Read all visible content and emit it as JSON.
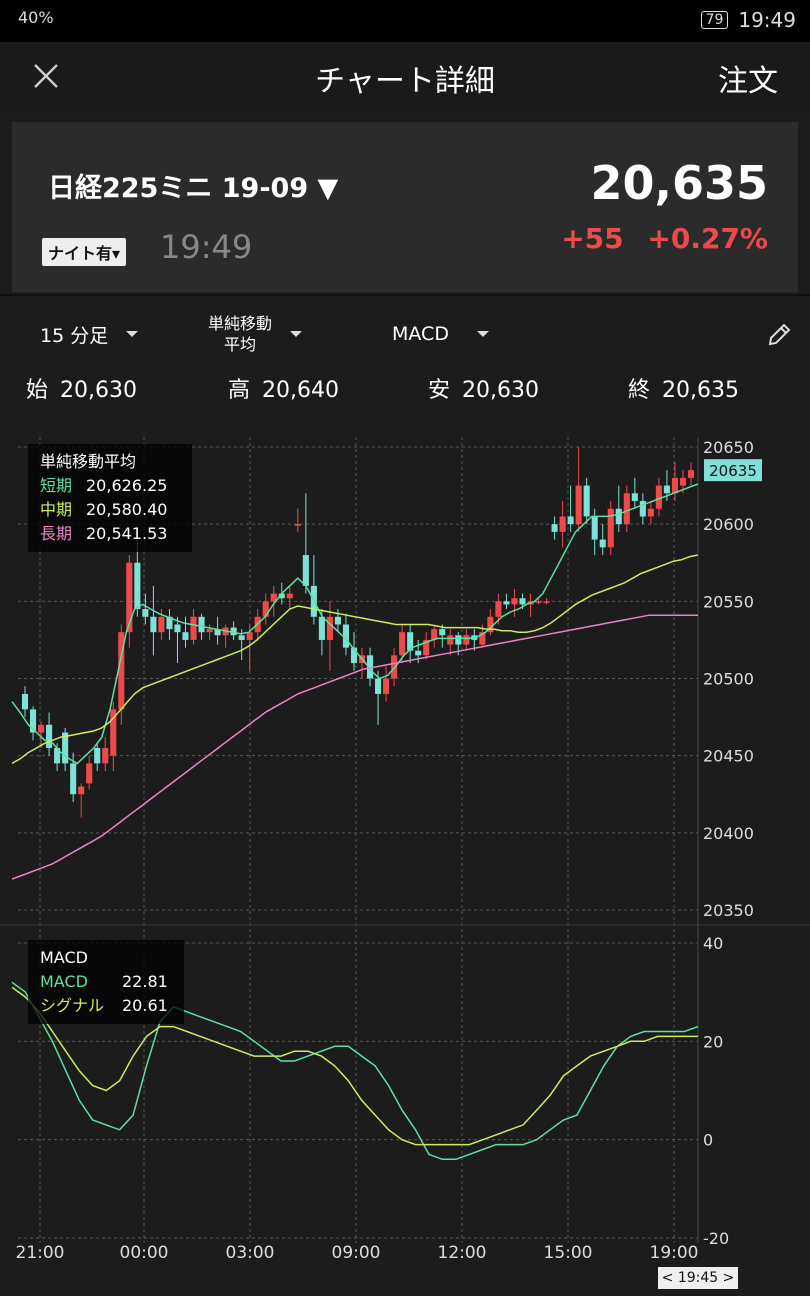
{
  "status_bar": {
    "left_text": "40%",
    "time": "19:49",
    "battery": "79"
  },
  "header": {
    "title": "チャート詳細",
    "order_label": "注文"
  },
  "quote": {
    "symbol": "日経225ミニ 19-09",
    "night_badge": "ナイト有",
    "time": "19:49",
    "price": "20,635",
    "change": "+55",
    "change_pct": "+0.27%"
  },
  "toolbar": {
    "interval": "15 分足",
    "indicator1_line1": "単純移動",
    "indicator1_line2": "平均",
    "indicator2": "MACD"
  },
  "ohlc": {
    "open_label": "始",
    "open": "20,630",
    "high_label": "高",
    "high": "20,640",
    "low_label": "安",
    "low": "20,630",
    "close_label": "終",
    "close": "20,635"
  },
  "ma_legend": {
    "title": "単純移動平均",
    "short_label": "短期",
    "short": "20,626.25",
    "mid_label": "中期",
    "mid": "20,580.40",
    "long_label": "長期",
    "long": "20,541.53"
  },
  "macd_legend": {
    "title": "MACD",
    "macd_label": "MACD",
    "macd": "22.81",
    "signal_label": "シグナル",
    "signal": "20.61"
  },
  "time_badge": "< 19:45 >",
  "colors": {
    "up": "#ef4a4a",
    "down": "#7fe0d8",
    "short": "#5ee0a0",
    "mid": "#c8ee60",
    "long": "#e884c8",
    "grid": "#555"
  },
  "chart_data": [
    {
      "type": "candlestick",
      "title": "",
      "current_price_label": "20635",
      "y_ticks": [
        "20650",
        "20600",
        "20550",
        "20500",
        "20450",
        "20400",
        "20350"
      ],
      "ylim": [
        20350,
        20650
      ],
      "x_ticks": [
        "21:00",
        "00:00",
        "03:00",
        "09:00",
        "12:00",
        "15:00",
        "19:00"
      ],
      "candles": [
        {
          "o": 20490,
          "h": 20495,
          "l": 20475,
          "c": 20480
        },
        {
          "o": 20480,
          "h": 20482,
          "l": 20460,
          "c": 20465
        },
        {
          "o": 20465,
          "h": 20472,
          "l": 20455,
          "c": 20470
        },
        {
          "o": 20470,
          "h": 20478,
          "l": 20450,
          "c": 20455
        },
        {
          "o": 20455,
          "h": 20458,
          "l": 20440,
          "c": 20445
        },
        {
          "o": 20465,
          "h": 20468,
          "l": 20440,
          "c": 20445
        },
        {
          "o": 20445,
          "h": 20452,
          "l": 20420,
          "c": 20425
        },
        {
          "o": 20425,
          "h": 20432,
          "l": 20410,
          "c": 20430
        },
        {
          "o": 20432,
          "h": 20450,
          "l": 20428,
          "c": 20445
        },
        {
          "o": 20455,
          "h": 20458,
          "l": 20440,
          "c": 20445
        },
        {
          "o": 20445,
          "h": 20462,
          "l": 20440,
          "c": 20455
        },
        {
          "o": 20450,
          "h": 20485,
          "l": 20440,
          "c": 20480
        },
        {
          "o": 20480,
          "h": 20535,
          "l": 20470,
          "c": 20530
        },
        {
          "o": 20530,
          "h": 20580,
          "l": 20520,
          "c": 20575
        },
        {
          "o": 20575,
          "h": 20590,
          "l": 20540,
          "c": 20545
        },
        {
          "o": 20545,
          "h": 20555,
          "l": 20535,
          "c": 20540
        },
        {
          "o": 20540,
          "h": 20560,
          "l": 20515,
          "c": 20530
        },
        {
          "o": 20530,
          "h": 20545,
          "l": 20525,
          "c": 20540
        },
        {
          "o": 20540,
          "h": 20545,
          "l": 20525,
          "c": 20532
        },
        {
          "o": 20535,
          "h": 20540,
          "l": 20510,
          "c": 20530
        },
        {
          "o": 20530,
          "h": 20540,
          "l": 20520,
          "c": 20525
        },
        {
          "o": 20525,
          "h": 20545,
          "l": 20522,
          "c": 20540
        },
        {
          "o": 20540,
          "h": 20542,
          "l": 20525,
          "c": 20530
        },
        {
          "o": 20530,
          "h": 20535,
          "l": 20525,
          "c": 20532
        },
        {
          "o": 20532,
          "h": 20540,
          "l": 20522,
          "c": 20528
        },
        {
          "o": 20528,
          "h": 20535,
          "l": 20520,
          "c": 20533
        },
        {
          "o": 20533,
          "h": 20537,
          "l": 20525,
          "c": 20528
        },
        {
          "o": 20528,
          "h": 20532,
          "l": 20512,
          "c": 20525
        },
        {
          "o": 20525,
          "h": 20535,
          "l": 20505,
          "c": 20530
        },
        {
          "o": 20530,
          "h": 20545,
          "l": 20525,
          "c": 20540
        },
        {
          "o": 20540,
          "h": 20555,
          "l": 20535,
          "c": 20550
        },
        {
          "o": 20550,
          "h": 20560,
          "l": 20540,
          "c": 20555
        },
        {
          "o": 20555,
          "h": 20562,
          "l": 20548,
          "c": 20552
        },
        {
          "o": 20552,
          "h": 20560,
          "l": 20545,
          "c": 20555
        },
        {
          "o": 20600,
          "h": 20610,
          "l": 20595,
          "c": 20600
        },
        {
          "o": 20580,
          "h": 20620,
          "l": 20555,
          "c": 20560
        },
        {
          "o": 20560,
          "h": 20580,
          "l": 20535,
          "c": 20540
        },
        {
          "o": 20540,
          "h": 20545,
          "l": 20515,
          "c": 20525
        },
        {
          "o": 20525,
          "h": 20550,
          "l": 20505,
          "c": 20540
        },
        {
          "o": 20540,
          "h": 20545,
          "l": 20530,
          "c": 20535
        },
        {
          "o": 20535,
          "h": 20542,
          "l": 20515,
          "c": 20520
        },
        {
          "o": 20520,
          "h": 20530,
          "l": 20505,
          "c": 20510
        },
        {
          "o": 20510,
          "h": 20520,
          "l": 20500,
          "c": 20515
        },
        {
          "o": 20515,
          "h": 20520,
          "l": 20495,
          "c": 20500
        },
        {
          "o": 20500,
          "h": 20505,
          "l": 20470,
          "c": 20490
        },
        {
          "o": 20490,
          "h": 20508,
          "l": 20485,
          "c": 20500
        },
        {
          "o": 20500,
          "h": 20520,
          "l": 20495,
          "c": 20515
        },
        {
          "o": 20515,
          "h": 20535,
          "l": 20510,
          "c": 20530
        },
        {
          "o": 20530,
          "h": 20535,
          "l": 20510,
          "c": 20518
        },
        {
          "o": 20518,
          "h": 20525,
          "l": 20510,
          "c": 20515
        },
        {
          "o": 20515,
          "h": 20530,
          "l": 20512,
          "c": 20525
        },
        {
          "o": 20525,
          "h": 20535,
          "l": 20520,
          "c": 20532
        },
        {
          "o": 20532,
          "h": 20535,
          "l": 20520,
          "c": 20528
        },
        {
          "o": 20522,
          "h": 20532,
          "l": 20515,
          "c": 20528
        },
        {
          "o": 20528,
          "h": 20530,
          "l": 20515,
          "c": 20522
        },
        {
          "o": 20522,
          "h": 20532,
          "l": 20518,
          "c": 20528
        },
        {
          "o": 20528,
          "h": 20532,
          "l": 20518,
          "c": 20525
        },
        {
          "o": 20522,
          "h": 20535,
          "l": 20520,
          "c": 20530
        },
        {
          "o": 20530,
          "h": 20545,
          "l": 20528,
          "c": 20540
        },
        {
          "o": 20540,
          "h": 20555,
          "l": 20535,
          "c": 20550
        },
        {
          "o": 20550,
          "h": 20555,
          "l": 20545,
          "c": 20548
        },
        {
          "o": 20548,
          "h": 20558,
          "l": 20540,
          "c": 20552
        },
        {
          "o": 20552,
          "h": 20555,
          "l": 20545,
          "c": 20548
        },
        {
          "o": 20548,
          "h": 20555,
          "l": 20540,
          "c": 20550
        },
        {
          "o": 20550,
          "h": 20552,
          "l": 20548,
          "c": 20550
        },
        {
          "o": 20550,
          "h": 20552,
          "l": 20548,
          "c": 20550
        },
        {
          "o": 20600,
          "h": 20605,
          "l": 20590,
          "c": 20595
        },
        {
          "o": 20595,
          "h": 20615,
          "l": 20585,
          "c": 20605
        },
        {
          "o": 20605,
          "h": 20625,
          "l": 20595,
          "c": 20600
        },
        {
          "o": 20600,
          "h": 20650,
          "l": 20595,
          "c": 20625
        },
        {
          "o": 20625,
          "h": 20630,
          "l": 20600,
          "c": 20605
        },
        {
          "o": 20605,
          "h": 20610,
          "l": 20580,
          "c": 20590
        },
        {
          "o": 20590,
          "h": 20600,
          "l": 20580,
          "c": 20585
        },
        {
          "o": 20585,
          "h": 20615,
          "l": 20580,
          "c": 20610
        },
        {
          "o": 20610,
          "h": 20625,
          "l": 20595,
          "c": 20600
        },
        {
          "o": 20600,
          "h": 20625,
          "l": 20595,
          "c": 20620
        },
        {
          "o": 20620,
          "h": 20630,
          "l": 20610,
          "c": 20615
        },
        {
          "o": 20615,
          "h": 20620,
          "l": 20600,
          "c": 20605
        },
        {
          "o": 20605,
          "h": 20615,
          "l": 20600,
          "c": 20610
        },
        {
          "o": 20610,
          "h": 20630,
          "l": 20605,
          "c": 20625
        },
        {
          "o": 20625,
          "h": 20635,
          "l": 20615,
          "c": 20620
        },
        {
          "o": 20620,
          "h": 20640,
          "l": 20615,
          "c": 20630
        },
        {
          "o": 20625,
          "h": 20635,
          "l": 20620,
          "c": 20630
        },
        {
          "o": 20630,
          "h": 20640,
          "l": 20625,
          "c": 20635
        }
      ],
      "series": [
        {
          "name": "短期",
          "values": [
            20485,
            20478,
            20470,
            20465,
            20460,
            20458,
            20452,
            20448,
            20445,
            20450,
            20455,
            20462,
            20480,
            20505,
            20530,
            20545,
            20548,
            20545,
            20542,
            20540,
            20538,
            20536,
            20535,
            20534,
            20533,
            20532,
            20531,
            20530,
            20529,
            20530,
            20535,
            20540,
            20548,
            20555,
            20560,
            20565,
            20560,
            20550,
            20540,
            20535,
            20530,
            20525,
            20518,
            20512,
            20505,
            20500,
            20502,
            20508,
            20515,
            20520,
            20522,
            20524,
            20526,
            20526,
            20526,
            20526,
            20526,
            20527,
            20530,
            20535,
            20540,
            20543,
            20545,
            20548,
            20550,
            20555,
            20565,
            20575,
            20585,
            20595,
            20600,
            20605,
            20605,
            20605,
            20606,
            20608,
            20610,
            20612,
            20614,
            20616,
            20618,
            20620,
            20622,
            20624,
            20626
          ]
        },
        {
          "name": "中期",
          "values": [
            20445,
            20448,
            20452,
            20455,
            20458,
            20460,
            20462,
            20463,
            20464,
            20465,
            20466,
            20468,
            20472,
            20478,
            20484,
            20490,
            20494,
            20496,
            20498,
            20500,
            20502,
            20504,
            20506,
            20508,
            20510,
            20512,
            20514,
            20516,
            20518,
            20521,
            20525,
            20530,
            20535,
            20540,
            20545,
            20547,
            20546,
            20545,
            20544,
            20543,
            20542,
            20541,
            20540,
            20539,
            20538,
            20537,
            20536,
            20535,
            20535,
            20535,
            20535,
            20535,
            20534,
            20533,
            20533,
            20533,
            20533,
            20533,
            20532,
            20532,
            20531,
            20531,
            20530,
            20530,
            20531,
            20533,
            20536,
            20540,
            20544,
            20548,
            20551,
            20554,
            20556,
            20558,
            20560,
            20562,
            20565,
            20568,
            20570,
            20572,
            20574,
            20576,
            20577,
            20579,
            20580
          ]
        },
        {
          "name": "長期",
          "values": [
            20370,
            20372,
            20374,
            20376,
            20378,
            20380,
            20383,
            20386,
            20389,
            20392,
            20395,
            20398,
            20402,
            20406,
            20410,
            20414,
            20418,
            20422,
            20426,
            20430,
            20434,
            20438,
            20442,
            20446,
            20450,
            20454,
            20458,
            20462,
            20466,
            20470,
            20474,
            20478,
            20481,
            20484,
            20487,
            20490,
            20492,
            20494,
            20496,
            20498,
            20500,
            20502,
            20504,
            20506,
            20507,
            20508,
            20509,
            20510,
            20511,
            20512,
            20513,
            20514,
            20515,
            20516,
            20517,
            20518,
            20519,
            20520,
            20521,
            20522,
            20523,
            20524,
            20525,
            20526,
            20527,
            20528,
            20529,
            20530,
            20531,
            20532,
            20533,
            20534,
            20535,
            20536,
            20537,
            20538,
            20539,
            20540,
            20541,
            20541,
            20541,
            20541,
            20541,
            20541,
            20541
          ]
        }
      ]
    },
    {
      "type": "line",
      "title": "MACD",
      "y_ticks": [
        "40",
        "20",
        "0",
        "-20"
      ],
      "ylim": [
        -20,
        40
      ],
      "x_ticks": [
        "21:00",
        "00:00",
        "03:00",
        "09:00",
        "12:00",
        "15:00",
        "19:00"
      ],
      "series": [
        {
          "name": "MACD",
          "values": [
            32,
            30,
            25,
            20,
            14,
            8,
            4,
            3,
            2,
            5,
            15,
            24,
            27,
            26,
            25,
            24,
            23,
            22,
            20,
            18,
            16,
            16,
            17,
            18,
            19,
            19,
            17,
            15,
            11,
            6,
            2,
            -3,
            -4,
            -4,
            -3,
            -2,
            -1,
            -1,
            -1,
            0,
            2,
            4,
            5,
            10,
            15,
            19,
            21,
            22,
            22,
            22,
            22,
            23
          ]
        },
        {
          "name": "シグナル",
          "values": [
            31,
            29,
            26,
            22,
            18,
            14,
            11,
            10,
            12,
            17,
            21,
            23,
            23,
            22,
            21,
            20,
            19,
            18,
            17,
            17,
            17,
            18,
            18,
            17,
            15,
            12,
            8,
            5,
            2,
            0,
            -1,
            -1,
            -1,
            -1,
            -1,
            0,
            1,
            2,
            3,
            6,
            9,
            13,
            15,
            17,
            18,
            19,
            20,
            20,
            21,
            21,
            21,
            21
          ]
        }
      ]
    }
  ]
}
